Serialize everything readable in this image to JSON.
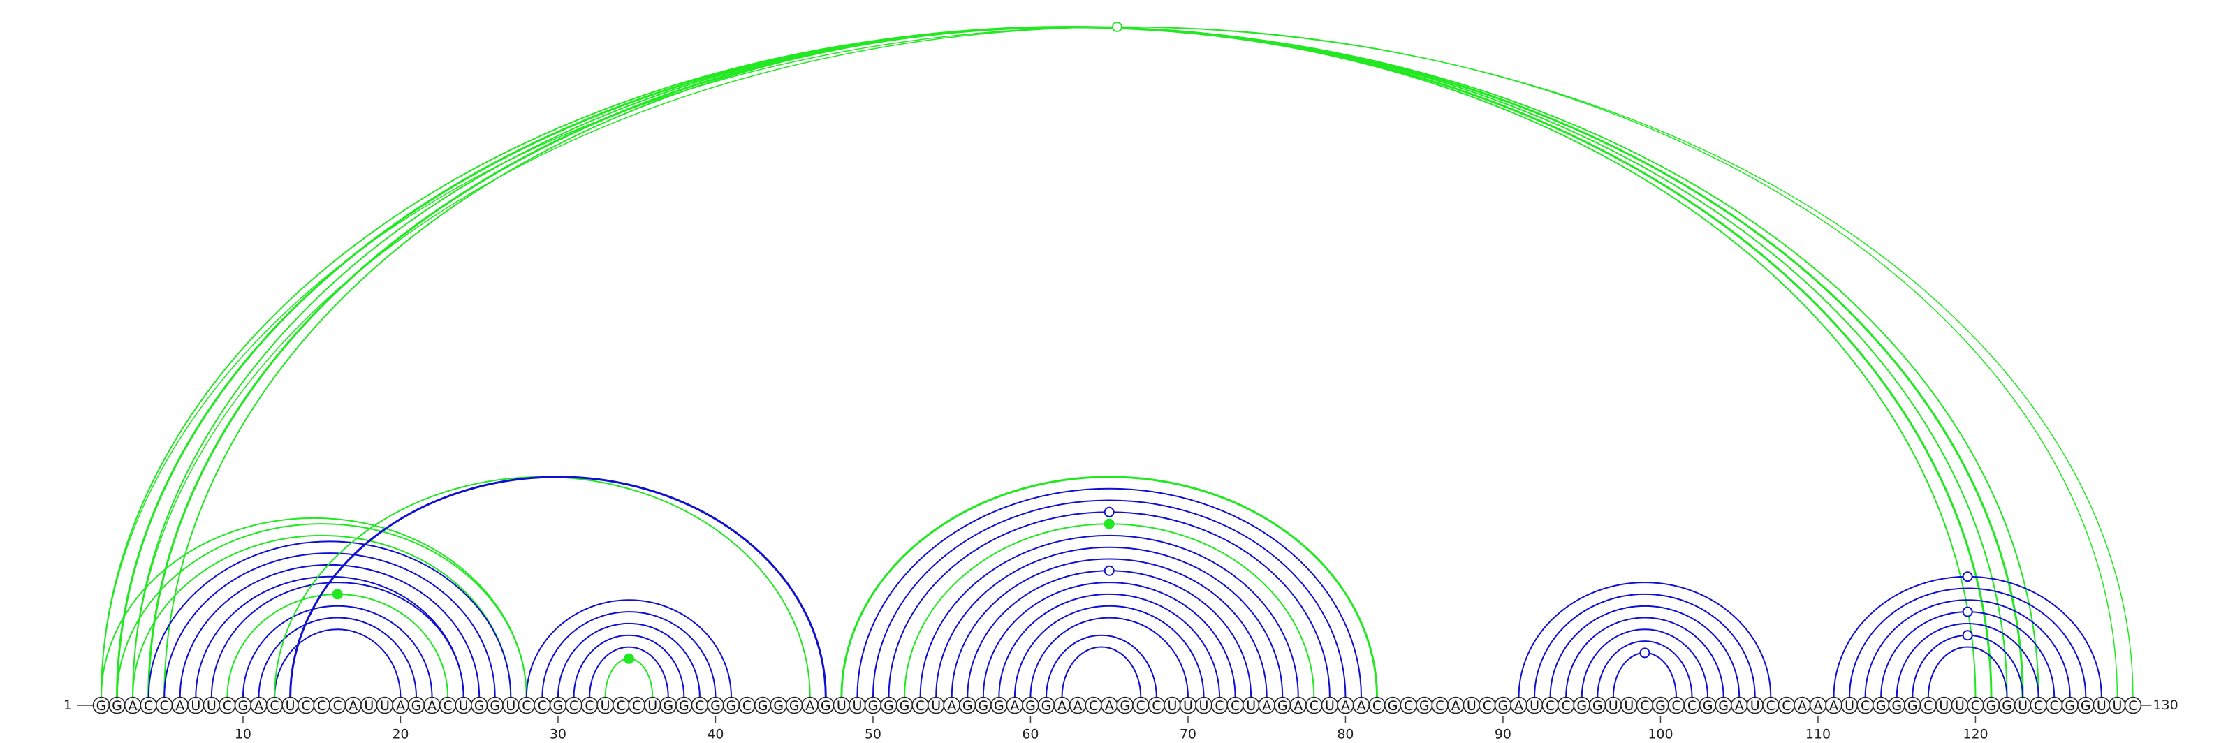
{
  "diagram": {
    "sequence": "GGACCAUUCGACUCCCAUUAGACUGGUCCGCCUCCUGGCGGCGGGAGUUGGGCUAGGGAGGAACAGCCUUUCCUAGACUAACGCGCAUCGAUCCGGUUCGCCGGAUCCAAAUCGGGCUUCGGUCCGGUUC",
    "start_label": "1",
    "end_label": "130",
    "tick_labels": [
      "10",
      "20",
      "30",
      "40",
      "50",
      "60",
      "70",
      "80",
      "90",
      "100",
      "110",
      "120"
    ],
    "colors": {
      "blue": "#1010d0",
      "green": "#22e822",
      "backbone": "#444444"
    },
    "arcs": [
      {
        "i": 1,
        "j": 124,
        "color": "green",
        "w": 2
      },
      {
        "i": 2,
        "j": 123,
        "color": "green",
        "w": 3
      },
      {
        "i": 3,
        "j": 122,
        "color": "green",
        "w": 2
      },
      {
        "i": 4,
        "j": 121,
        "color": "green",
        "w": 3
      },
      {
        "i": 5,
        "j": 120,
        "color": "green",
        "w": 2
      },
      {
        "i": 1,
        "j": 130,
        "color": "green",
        "w": 1.5
      },
      {
        "i": 3,
        "j": 129,
        "color": "green",
        "w": 1.5
      },
      {
        "i": 1,
        "j": 28,
        "color": "green",
        "w": 2
      },
      {
        "i": 2,
        "j": 28,
        "color": "green",
        "w": 2
      },
      {
        "i": 3,
        "j": 27,
        "color": "green",
        "w": 2
      },
      {
        "i": 4,
        "j": 27,
        "color": "blue",
        "w": 2
      },
      {
        "i": 5,
        "j": 26,
        "color": "blue",
        "w": 2
      },
      {
        "i": 6,
        "j": 25,
        "color": "blue",
        "w": 2
      },
      {
        "i": 7,
        "j": 24,
        "color": "blue",
        "w": 2
      },
      {
        "i": 8,
        "j": 24,
        "color": "blue",
        "w": 2
      },
      {
        "i": 9,
        "j": 23,
        "color": "green",
        "w": 2
      },
      {
        "i": 10,
        "j": 22,
        "color": "blue",
        "w": 2
      },
      {
        "i": 11,
        "j": 21,
        "color": "blue",
        "w": 2
      },
      {
        "i": 12,
        "j": 20,
        "color": "blue",
        "w": 2
      },
      {
        "i": 12,
        "j": 46,
        "color": "green",
        "w": 2
      },
      {
        "i": 13,
        "j": 47,
        "color": "blue",
        "w": 3
      },
      {
        "i": 28,
        "j": 41,
        "color": "blue",
        "w": 2
      },
      {
        "i": 29,
        "j": 40,
        "color": "blue",
        "w": 2
      },
      {
        "i": 30,
        "j": 39,
        "color": "blue",
        "w": 2
      },
      {
        "i": 31,
        "j": 38,
        "color": "blue",
        "w": 2
      },
      {
        "i": 32,
        "j": 37,
        "color": "blue",
        "w": 2
      },
      {
        "i": 33,
        "j": 36,
        "color": "green",
        "w": 2
      },
      {
        "i": 48,
        "j": 82,
        "color": "green",
        "w": 3
      },
      {
        "i": 49,
        "j": 81,
        "color": "blue",
        "w": 2
      },
      {
        "i": 50,
        "j": 80,
        "color": "blue",
        "w": 2
      },
      {
        "i": 51,
        "j": 79,
        "color": "blue",
        "w": 2
      },
      {
        "i": 52,
        "j": 78,
        "color": "green",
        "w": 2
      },
      {
        "i": 53,
        "j": 77,
        "color": "blue",
        "w": 2
      },
      {
        "i": 54,
        "j": 76,
        "color": "blue",
        "w": 2
      },
      {
        "i": 55,
        "j": 75,
        "color": "blue",
        "w": 2
      },
      {
        "i": 56,
        "j": 74,
        "color": "blue",
        "w": 2
      },
      {
        "i": 57,
        "j": 73,
        "color": "blue",
        "w": 2
      },
      {
        "i": 58,
        "j": 72,
        "color": "blue",
        "w": 2
      },
      {
        "i": 59,
        "j": 71,
        "color": "blue",
        "w": 2
      },
      {
        "i": 60,
        "j": 70,
        "color": "blue",
        "w": 2
      },
      {
        "i": 61,
        "j": 68,
        "color": "blue",
        "w": 2
      },
      {
        "i": 62,
        "j": 67,
        "color": "blue",
        "w": 2
      },
      {
        "i": 91,
        "j": 107,
        "color": "blue",
        "w": 2
      },
      {
        "i": 92,
        "j": 106,
        "color": "blue",
        "w": 2
      },
      {
        "i": 93,
        "j": 105,
        "color": "blue",
        "w": 2
      },
      {
        "i": 94,
        "j": 104,
        "color": "blue",
        "w": 2
      },
      {
        "i": 95,
        "j": 103,
        "color": "blue",
        "w": 2
      },
      {
        "i": 96,
        "j": 102,
        "color": "blue",
        "w": 2
      },
      {
        "i": 97,
        "j": 101,
        "color": "blue",
        "w": 2
      },
      {
        "i": 111,
        "j": 128,
        "color": "blue",
        "w": 2
      },
      {
        "i": 112,
        "j": 127,
        "color": "blue",
        "w": 2
      },
      {
        "i": 113,
        "j": 126,
        "color": "blue",
        "w": 2
      },
      {
        "i": 114,
        "j": 125,
        "color": "blue",
        "w": 2
      },
      {
        "i": 115,
        "j": 124,
        "color": "blue",
        "w": 2
      },
      {
        "i": 116,
        "j": 123,
        "color": "blue",
        "w": 2
      },
      {
        "i": 117,
        "j": 122,
        "color": "blue",
        "w": 2
      }
    ],
    "markers": [
      {
        "i": 1,
        "j": 130,
        "color": "green",
        "filled": false
      },
      {
        "i": 9,
        "j": 23,
        "color": "green",
        "filled": true
      },
      {
        "i": 33,
        "j": 36,
        "color": "green",
        "filled": true
      },
      {
        "i": 51,
        "j": 79,
        "color": "blue",
        "filled": false
      },
      {
        "i": 52,
        "j": 78,
        "color": "green",
        "filled": true
      },
      {
        "i": 56,
        "j": 74,
        "color": "blue",
        "filled": false
      },
      {
        "i": 97,
        "j": 101,
        "color": "blue",
        "filled": false
      },
      {
        "i": 111,
        "j": 128,
        "color": "blue",
        "filled": false
      },
      {
        "i": 114,
        "j": 125,
        "color": "blue",
        "filled": false
      },
      {
        "i": 116,
        "j": 123,
        "color": "blue",
        "filled": false
      }
    ]
  }
}
